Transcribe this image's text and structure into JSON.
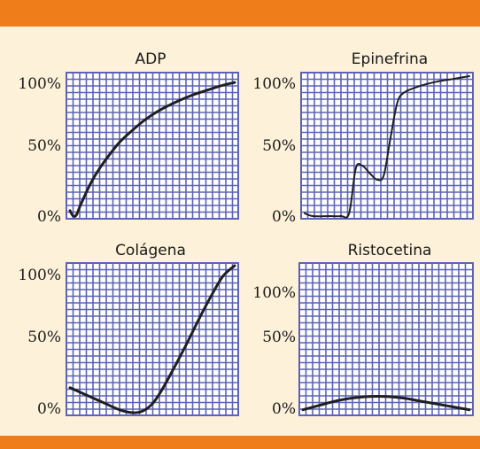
{
  "colors": {
    "frame": "#ef7d1a",
    "background": "#fdf1d9",
    "grid_bg": "#ffffff",
    "grid_line": "#5d63b4",
    "curve": "#1f1f1f"
  },
  "chart_data": [
    {
      "type": "line",
      "title": "ADP",
      "ylim": [
        0,
        100
      ],
      "yticks": [
        "100%",
        "50%",
        "0%"
      ],
      "x": [
        0,
        0.02,
        0.04,
        0.06,
        0.09,
        0.13,
        0.18,
        0.24,
        0.3,
        0.38,
        0.46,
        0.55,
        0.65,
        0.75,
        0.85,
        0.93,
        1.0
      ],
      "series": [
        {
          "values": [
            4,
            0,
            1,
            7,
            15,
            25,
            35,
            45,
            54,
            63,
            71,
            78,
            84,
            89,
            93,
            96,
            98
          ]
        }
      ],
      "grid": true
    },
    {
      "type": "line",
      "title": "Epinefrina",
      "ylim": [
        0,
        100
      ],
      "yticks": [
        "100%",
        "50%",
        "0%"
      ],
      "x": [
        0,
        0.05,
        0.15,
        0.22,
        0.27,
        0.31,
        0.35,
        0.4,
        0.44,
        0.48,
        0.52,
        0.56,
        0.6,
        0.7,
        0.8,
        0.9,
        1.0
      ],
      "series": [
        {
          "values": [
            2,
            0,
            0,
            0,
            2,
            34,
            36,
            30,
            26,
            29,
            55,
            80,
            88,
            93,
            96,
            98,
            100
          ]
        }
      ],
      "grid": true
    },
    {
      "type": "line",
      "title": "Colágena",
      "ylim": [
        0,
        100
      ],
      "yticks": [
        "100%",
        "50%",
        "0%"
      ],
      "x": [
        0,
        0.1,
        0.2,
        0.3,
        0.38,
        0.44,
        0.5,
        0.55,
        0.62,
        0.7,
        0.78,
        0.86,
        0.93,
        1.0
      ],
      "series": [
        {
          "values": [
            17,
            12,
            7,
            2,
            0,
            1,
            6,
            14,
            28,
            45,
            63,
            80,
            93,
            100
          ]
        }
      ],
      "grid": true
    },
    {
      "type": "line",
      "title": "Ristocetina",
      "ylim": [
        0,
        100
      ],
      "yticks": [
        "100%",
        "50%",
        "0%"
      ],
      "x": [
        0,
        0.1,
        0.2,
        0.3,
        0.4,
        0.5,
        0.6,
        0.7,
        0.8,
        0.9,
        1.0
      ],
      "series": [
        {
          "values": [
            2,
            5,
            8,
            10,
            11,
            11,
            10,
            8,
            6,
            4,
            2
          ]
        }
      ],
      "grid": true
    }
  ]
}
